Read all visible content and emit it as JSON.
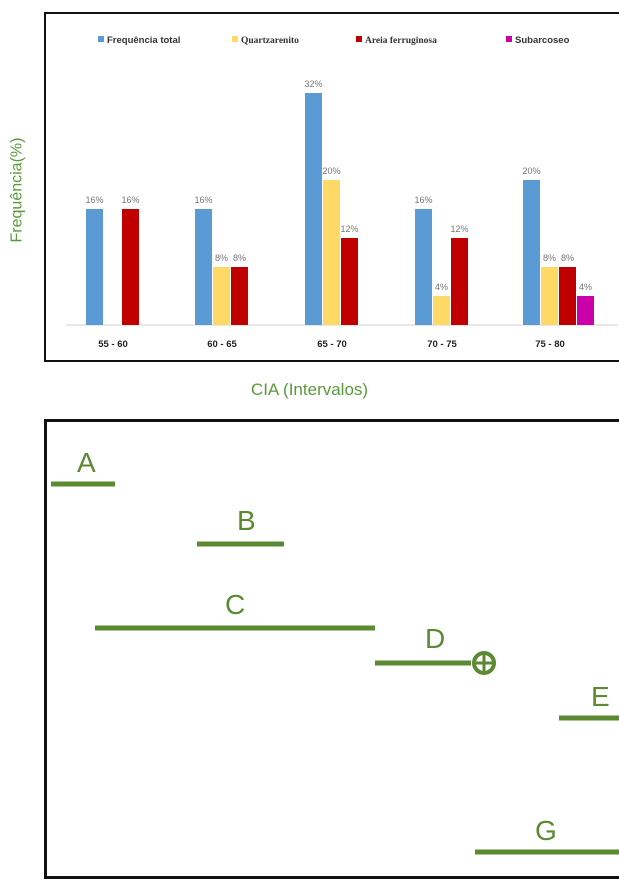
{
  "chart_data": {
    "type": "bar",
    "ylabel": "Frequência(%)",
    "xlabel": "CIA (Intervalos)",
    "categories": [
      "55 - 60",
      "60 - 65",
      "65 - 70",
      "70 - 75",
      "75 - 80"
    ],
    "ylim": [
      0,
      34
    ],
    "legend_position": "top",
    "series": [
      {
        "name": "Frequência total",
        "color": "#5b9bd5",
        "values": [
          16,
          16,
          32,
          16,
          20
        ]
      },
      {
        "name": "Quartzarenito",
        "color": "#ffd966",
        "values": [
          0,
          8,
          20,
          4,
          8
        ]
      },
      {
        "name": "Areia ferruginosa",
        "color": "#c00000",
        "values": [
          16,
          8,
          12,
          12,
          8
        ]
      },
      {
        "name": "Subarcoseo",
        "color": "#cc00aa",
        "values": [
          0,
          0,
          0,
          0,
          4
        ]
      }
    ],
    "value_labels": [
      [
        "16%",
        "",
        "16%",
        ""
      ],
      [
        "16%",
        "8%",
        "8%",
        ""
      ],
      [
        "32%",
        "20%",
        "12%",
        ""
      ],
      [
        "16%",
        "4%",
        "12%",
        ""
      ],
      [
        "20%",
        "8%",
        "8%",
        "4%"
      ]
    ]
  },
  "diagram": {
    "line_color": "#5b8a32",
    "segments": [
      {
        "label": "A"
      },
      {
        "label": "B"
      },
      {
        "label": "C"
      },
      {
        "label": "D"
      },
      {
        "label": "E"
      },
      {
        "label": "G"
      }
    ]
  }
}
